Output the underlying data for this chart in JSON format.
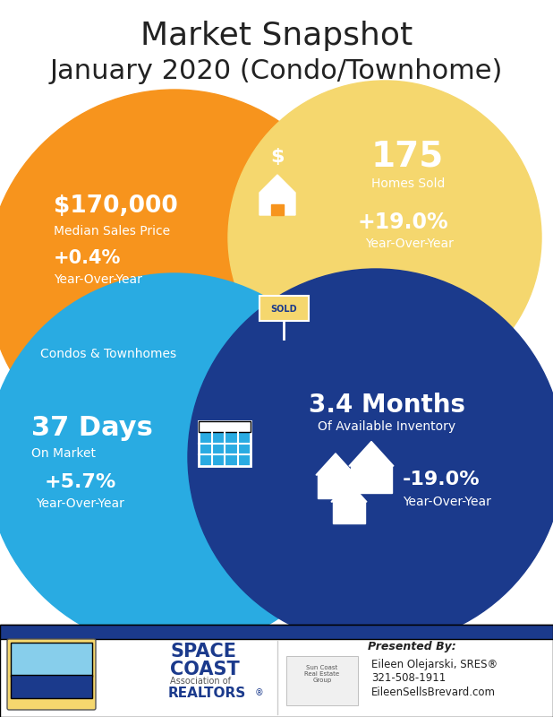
{
  "title_line1": "Market Snapshot",
  "title_line2": "January 2020 (Condo/Townhome)",
  "bg_color": "#ffffff",
  "orange": "#F7941D",
  "yellow": "#F5D76E",
  "light_blue": "#29ABE2",
  "dark_blue": "#1B3A8C",
  "white": "#ffffff",
  "black": "#222222",
  "stat1_main": "$170,000",
  "stat1_sub1": "Median Sales Price",
  "stat1_sub2": "+0.4%",
  "stat1_sub3": "Year-Over-Year",
  "stat2_main": "175",
  "stat2_sub1": "Homes Sold",
  "stat2_sub2": "+19.0%",
  "stat2_sub3": "Year-Over-Year",
  "stat3_main": "37 Days",
  "stat3_sub1": "On Market",
  "stat3_sub2": "+5.7%",
  "stat3_sub3": "Year-Over-Year",
  "stat4_main": "3.4 Months",
  "stat4_sub1": "Of Available Inventory",
  "stat4_sub2": "-19.0%",
  "stat4_sub3": "Year-Over-Year",
  "label_center": "Condos & Townhomes",
  "presented_by": "Presented By:",
  "agent_name": "Eileen Olejarski, SRES®",
  "agent_phone": "321-508-1911",
  "agent_web": "EileenSellsBrevard.com"
}
